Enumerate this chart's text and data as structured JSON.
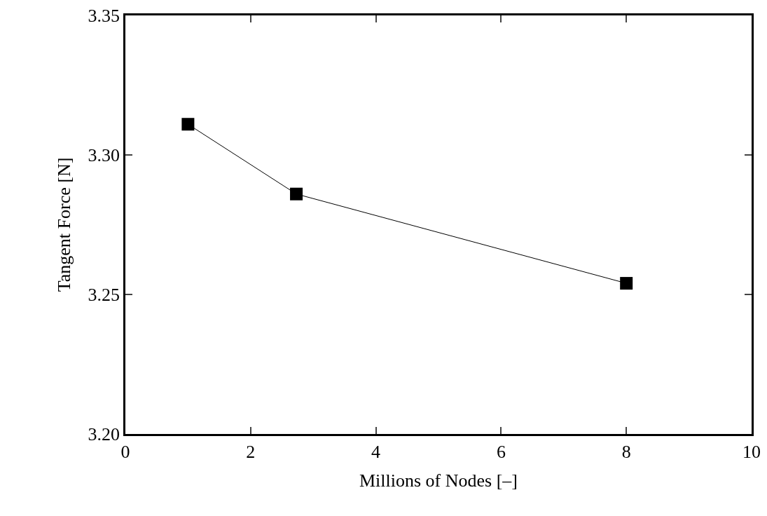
{
  "chart_data": {
    "type": "line",
    "xlabel": "Millions of Nodes [–]",
    "ylabel": "Tangent Force [N]",
    "x": [
      1,
      2.73,
      8
    ],
    "series": [
      {
        "color": "#000000",
        "values": [
          3.311,
          3.286,
          3.254
        ]
      }
    ],
    "xlim": [
      0,
      10
    ],
    "xticks": [
      0,
      2,
      4,
      6,
      8,
      10
    ],
    "ylim": [
      3.2,
      3.35
    ],
    "yticks": [
      {
        "value": 3.2,
        "label": "3.20"
      },
      {
        "value": 3.25,
        "label": "3.25"
      },
      {
        "value": 3.3,
        "label": "3.30"
      },
      {
        "value": 3.35,
        "label": "3.35"
      }
    ],
    "grid": false,
    "marker": "square",
    "line_style": "solid"
  }
}
